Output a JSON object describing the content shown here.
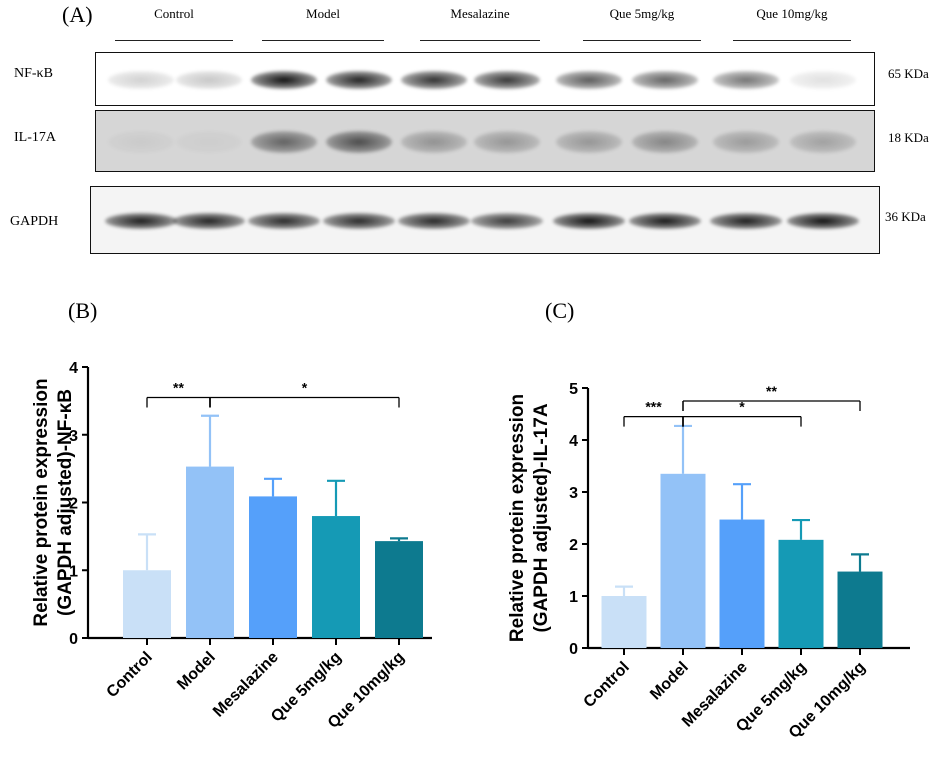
{
  "panel_a": {
    "label": "(A)",
    "groups": [
      "Control",
      "Model",
      "Mesalazine",
      "Que 5mg/kg",
      "Que 10mg/kg"
    ],
    "rows": [
      {
        "protein": "NF-κB",
        "size": "65 KDa",
        "intensity": [
          0.18,
          0.22,
          0.95,
          0.88,
          0.82,
          0.8,
          0.65,
          0.62,
          0.55,
          0.12
        ]
      },
      {
        "protein": "IL-17A",
        "size": "18 KDa",
        "intensity": [
          0.05,
          0.04,
          0.55,
          0.65,
          0.32,
          0.3,
          0.3,
          0.38,
          0.28,
          0.25
        ]
      },
      {
        "protein": "GAPDH",
        "size": "36 KDa",
        "intensity": [
          0.9,
          0.88,
          0.85,
          0.85,
          0.86,
          0.78,
          0.95,
          0.92,
          0.9,
          0.95
        ]
      }
    ]
  },
  "chart_data": [
    {
      "panel": "(B)",
      "type": "bar",
      "categories": [
        "Control",
        "Model",
        "Mesalazine",
        "Que 5mg/kg",
        "Que 10mg/kg"
      ],
      "values": [
        1.0,
        2.53,
        2.09,
        1.8,
        1.43
      ],
      "errors": [
        0.53,
        0.75,
        0.26,
        0.52,
        0.04
      ],
      "colors": [
        "#c9e0f7",
        "#93c2f7",
        "#55a0fa",
        "#159ab5",
        "#0d7a8f"
      ],
      "ylabel": "Relative protein expression\n(GAPDH adjusted)-NF-κB",
      "ylim": [
        0,
        4
      ],
      "yticks": [
        0,
        1,
        2,
        3,
        4
      ],
      "significance": [
        {
          "from": 0,
          "to": 1,
          "pivot": 1,
          "label": "**",
          "level": 3.55
        },
        {
          "from": 1,
          "to": 4,
          "pivot": 1,
          "label": "*",
          "level": 3.55
        }
      ]
    },
    {
      "panel": "(C)",
      "type": "bar",
      "categories": [
        "Control",
        "Model",
        "Mesalazine",
        "Que 5mg/kg",
        "Que 10mg/kg"
      ],
      "values": [
        1.0,
        3.35,
        2.47,
        2.08,
        1.47
      ],
      "errors": [
        0.18,
        0.92,
        0.68,
        0.38,
        0.33
      ],
      "colors": [
        "#c9e0f7",
        "#93c2f7",
        "#55a0fa",
        "#159ab5",
        "#0d7a8f"
      ],
      "ylabel": "Relative protein expression\n(GAPDH adjusted)-IL-17A",
      "ylim": [
        0,
        5
      ],
      "yticks": [
        0,
        1,
        2,
        3,
        4,
        5
      ],
      "significance": [
        {
          "from": 0,
          "to": 1,
          "pivot": 1,
          "label": "***",
          "level": 4.45
        },
        {
          "from": 1,
          "to": 3,
          "pivot": 1,
          "label": "*",
          "level": 4.45
        },
        {
          "from": 1,
          "to": 4,
          "pivot": 1,
          "label": "**",
          "level": 4.75
        }
      ]
    }
  ]
}
